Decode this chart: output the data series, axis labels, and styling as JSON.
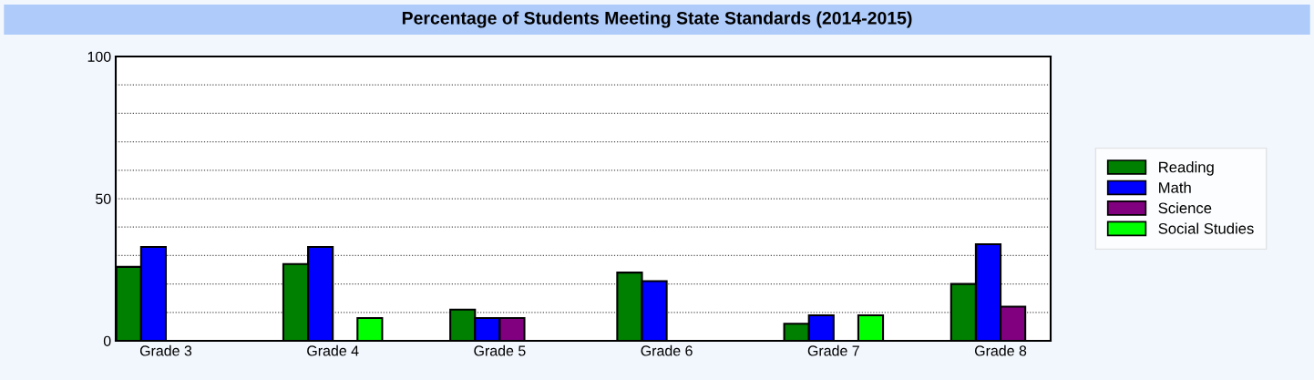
{
  "chart_data": {
    "type": "bar",
    "title": "Percentage of Students Meeting State Standards (2014-2015)",
    "categories": [
      "Grade 3",
      "Grade 4",
      "Grade 5",
      "Grade 6",
      "Grade 7",
      "Grade 8"
    ],
    "series": [
      {
        "name": "Reading",
        "color": "#008000",
        "values": [
          26,
          27,
          11,
          24,
          6,
          20
        ]
      },
      {
        "name": "Math",
        "color": "#0000ff",
        "values": [
          33,
          33,
          8,
          21,
          9,
          34
        ]
      },
      {
        "name": "Science",
        "color": "#800080",
        "values": [
          null,
          null,
          8,
          null,
          null,
          12
        ]
      },
      {
        "name": "Social Studies",
        "color": "#00ff00",
        "values": [
          null,
          8,
          null,
          null,
          9,
          null
        ]
      }
    ],
    "ylim": [
      0,
      100
    ],
    "yticks": [
      0,
      {
        "value": 10,
        "label": null
      },
      {
        "value": 20,
        "label": null
      },
      {
        "value": 30,
        "label": null
      },
      {
        "value": 40,
        "label": null
      },
      50,
      {
        "value": 60,
        "label": null
      },
      {
        "value": 70,
        "label": null
      },
      {
        "value": 80,
        "label": null
      },
      {
        "value": 90,
        "label": null
      },
      100
    ],
    "grid": "y",
    "legend": "right"
  }
}
